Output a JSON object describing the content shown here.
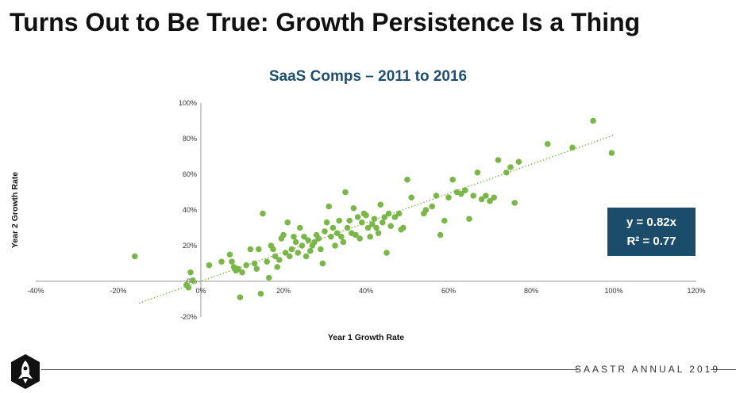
{
  "slide_title": "Turns Out to Be True: Growth Persistence Is a Thing",
  "footer_text": "SAASTR ANNUAL 2019",
  "logo_icon": "saastr-rocket-logo-icon",
  "colors": {
    "points": "#7ab648",
    "trendline": "#7ab648",
    "equation_box": "#1b4d6b",
    "title": "#1f4e6e"
  },
  "chart_data": {
    "type": "scatter",
    "title": "SaaS Comps – 2011 to 2016",
    "xlabel": "Year 1 Growth Rate",
    "ylabel": "Year 2 Growth Rate",
    "xlim": [
      -40,
      120
    ],
    "ylim": [
      -20,
      100
    ],
    "x_ticks": [
      "-40%",
      "-20%",
      "0%",
      "20%",
      "40%",
      "60%",
      "80%",
      "100%",
      "120%"
    ],
    "y_ticks": [
      "100%",
      "80%",
      "60%",
      "40%",
      "20%",
      "0%",
      "-20%"
    ],
    "grid": false,
    "trendline": {
      "slope": 0.82,
      "intercept": 0,
      "x_range": [
        -15,
        100
      ]
    },
    "equation": "y = 0.82x",
    "r_squared": "R² = 0.77",
    "points": [
      [
        -16,
        14
      ],
      [
        -3.5,
        -2
      ],
      [
        -3,
        -3.5
      ],
      [
        -2.5,
        5
      ],
      [
        -2,
        0.5
      ],
      [
        2,
        9
      ],
      [
        5,
        11
      ],
      [
        7,
        15
      ],
      [
        7.5,
        11
      ],
      [
        8,
        8
      ],
      [
        8.5,
        6
      ],
      [
        9,
        7
      ],
      [
        9.5,
        -9
      ],
      [
        10,
        5
      ],
      [
        11,
        9
      ],
      [
        12,
        18
      ],
      [
        13,
        10
      ],
      [
        13.5,
        7
      ],
      [
        14,
        18
      ],
      [
        14.5,
        -7
      ],
      [
        15,
        38
      ],
      [
        16,
        11
      ],
      [
        16.5,
        2
      ],
      [
        17,
        20
      ],
      [
        17.5,
        18
      ],
      [
        18,
        14
      ],
      [
        18.5,
        8
      ],
      [
        19,
        12
      ],
      [
        19.5,
        24
      ],
      [
        20,
        26
      ],
      [
        20.5,
        16
      ],
      [
        21,
        33
      ],
      [
        21.5,
        14
      ],
      [
        22,
        18
      ],
      [
        22.5,
        25
      ],
      [
        23,
        22
      ],
      [
        23.5,
        16
      ],
      [
        24,
        30
      ],
      [
        24.5,
        20
      ],
      [
        25,
        25
      ],
      [
        25.5,
        14
      ],
      [
        26,
        23
      ],
      [
        26.5,
        17
      ],
      [
        27,
        20
      ],
      [
        27.5,
        22
      ],
      [
        28,
        26
      ],
      [
        28.5,
        24
      ],
      [
        29,
        18
      ],
      [
        29.5,
        10
      ],
      [
        30,
        28
      ],
      [
        30.5,
        33
      ],
      [
        31,
        42
      ],
      [
        31.5,
        25
      ],
      [
        32,
        30
      ],
      [
        32.5,
        20
      ],
      [
        33,
        27
      ],
      [
        33.5,
        34
      ],
      [
        34,
        25
      ],
      [
        34.5,
        22
      ],
      [
        35,
        50
      ],
      [
        35.5,
        30
      ],
      [
        36,
        34
      ],
      [
        36.5,
        27
      ],
      [
        37,
        41
      ],
      [
        37.5,
        26
      ],
      [
        38,
        36
      ],
      [
        38.5,
        24
      ],
      [
        39,
        33
      ],
      [
        39.5,
        38
      ],
      [
        40,
        37
      ],
      [
        40.5,
        30
      ],
      [
        41,
        25
      ],
      [
        41.5,
        32
      ],
      [
        42,
        35
      ],
      [
        42.5,
        30
      ],
      [
        43,
        27
      ],
      [
        43.5,
        43
      ],
      [
        44,
        33
      ],
      [
        44.5,
        36
      ],
      [
        45,
        16
      ],
      [
        45.5,
        38
      ],
      [
        46,
        31
      ],
      [
        47,
        36
      ],
      [
        48,
        38
      ],
      [
        48.5,
        29
      ],
      [
        49,
        30
      ],
      [
        50,
        57
      ],
      [
        51,
        47
      ],
      [
        54,
        38
      ],
      [
        54.5,
        40
      ],
      [
        56,
        42
      ],
      [
        57,
        48
      ],
      [
        58,
        26
      ],
      [
        59,
        34
      ],
      [
        60,
        47
      ],
      [
        61,
        57
      ],
      [
        62,
        50
      ],
      [
        63,
        49
      ],
      [
        64,
        51
      ],
      [
        65,
        35
      ],
      [
        66,
        48
      ],
      [
        67,
        61
      ],
      [
        68,
        46
      ],
      [
        69,
        48
      ],
      [
        70,
        45
      ],
      [
        71,
        47
      ],
      [
        72,
        68
      ],
      [
        74,
        61
      ],
      [
        75,
        64
      ],
      [
        76,
        44
      ],
      [
        77,
        67
      ],
      [
        84,
        77
      ],
      [
        90,
        75
      ],
      [
        95,
        90
      ],
      [
        99.5,
        72
      ]
    ]
  }
}
